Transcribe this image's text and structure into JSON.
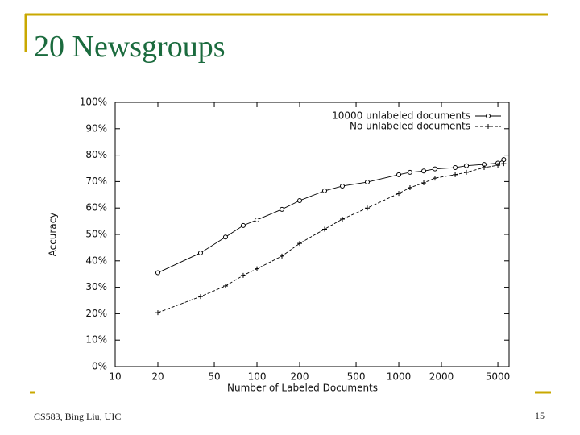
{
  "slide": {
    "title": "20 Newsgroups",
    "footer": "CS583, Bing Liu, UIC",
    "page_number": "15"
  },
  "chart_data": {
    "type": "line",
    "x_label": "Number of Labeled Documents",
    "y_label": "Accuracy",
    "xscale": "log",
    "xlim": [
      10,
      6000
    ],
    "xticks": [
      10,
      20,
      50,
      100,
      200,
      500,
      1000,
      2000,
      5000
    ],
    "ylim": [
      0,
      100
    ],
    "yticks": [
      {
        "value": 0,
        "label": "0%"
      },
      {
        "value": 10,
        "label": "10%"
      },
      {
        "value": 20,
        "label": "20%"
      },
      {
        "value": 30,
        "label": "30%"
      },
      {
        "value": 40,
        "label": "40%"
      },
      {
        "value": 50,
        "label": "50%"
      },
      {
        "value": 60,
        "label": "60%"
      },
      {
        "value": 70,
        "label": "70%"
      },
      {
        "value": 80,
        "label": "80%"
      },
      {
        "value": 90,
        "label": "90%"
      },
      {
        "value": 100,
        "label": "100%"
      }
    ],
    "grid": false,
    "legend": "top-right",
    "x": [
      20,
      40,
      60,
      80,
      100,
      150,
      200,
      300,
      400,
      600,
      1000,
      1200,
      1500,
      1800,
      2500,
      3000,
      4000,
      5000,
      5500
    ],
    "series": [
      {
        "name": "10000 unlabeled documents",
        "color": "#000000",
        "marker": "circle",
        "line_style": "solid",
        "values": [
          35.5,
          43,
          49,
          53.4,
          55.5,
          59.5,
          62.8,
          66.5,
          68.3,
          69.8,
          72.6,
          73.5,
          74,
          74.8,
          75.3,
          76,
          76.5,
          77,
          78.3
        ]
      },
      {
        "name": "No unlabeled documents",
        "color": "#000000",
        "marker": "plus",
        "line_style": "dashed",
        "values": [
          20.4,
          26.5,
          30.5,
          34.5,
          37,
          41.8,
          46.6,
          52,
          55.8,
          60,
          65.5,
          67.7,
          69.5,
          71.3,
          72.6,
          73.5,
          75.3,
          76.2,
          76.8
        ]
      }
    ]
  }
}
